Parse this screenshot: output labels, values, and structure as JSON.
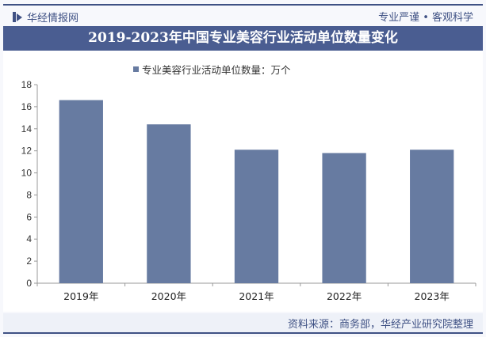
{
  "header": {
    "brand": "华经情报网",
    "slogan": "专业严谨 • 客观科学"
  },
  "footer": {
    "source": "资料来源：商务部，华经产业研究院整理"
  },
  "chart_data": {
    "type": "bar",
    "title": "2019-2023年中国专业美容行业活动单位数量变化",
    "categories": [
      "2019年",
      "2020年",
      "2021年",
      "2022年",
      "2023年"
    ],
    "series": [
      {
        "name": "专业美容行业活动单位数量：万个",
        "values": [
          16.6,
          14.4,
          12.1,
          11.8,
          12.1
        ],
        "color": "#677ba1"
      }
    ],
    "ylim": [
      0,
      18
    ],
    "yticks": [
      "0",
      "2",
      "4",
      "6",
      "8",
      "10",
      "12",
      "14",
      "16",
      "18"
    ],
    "grid": false,
    "legend": "top"
  }
}
